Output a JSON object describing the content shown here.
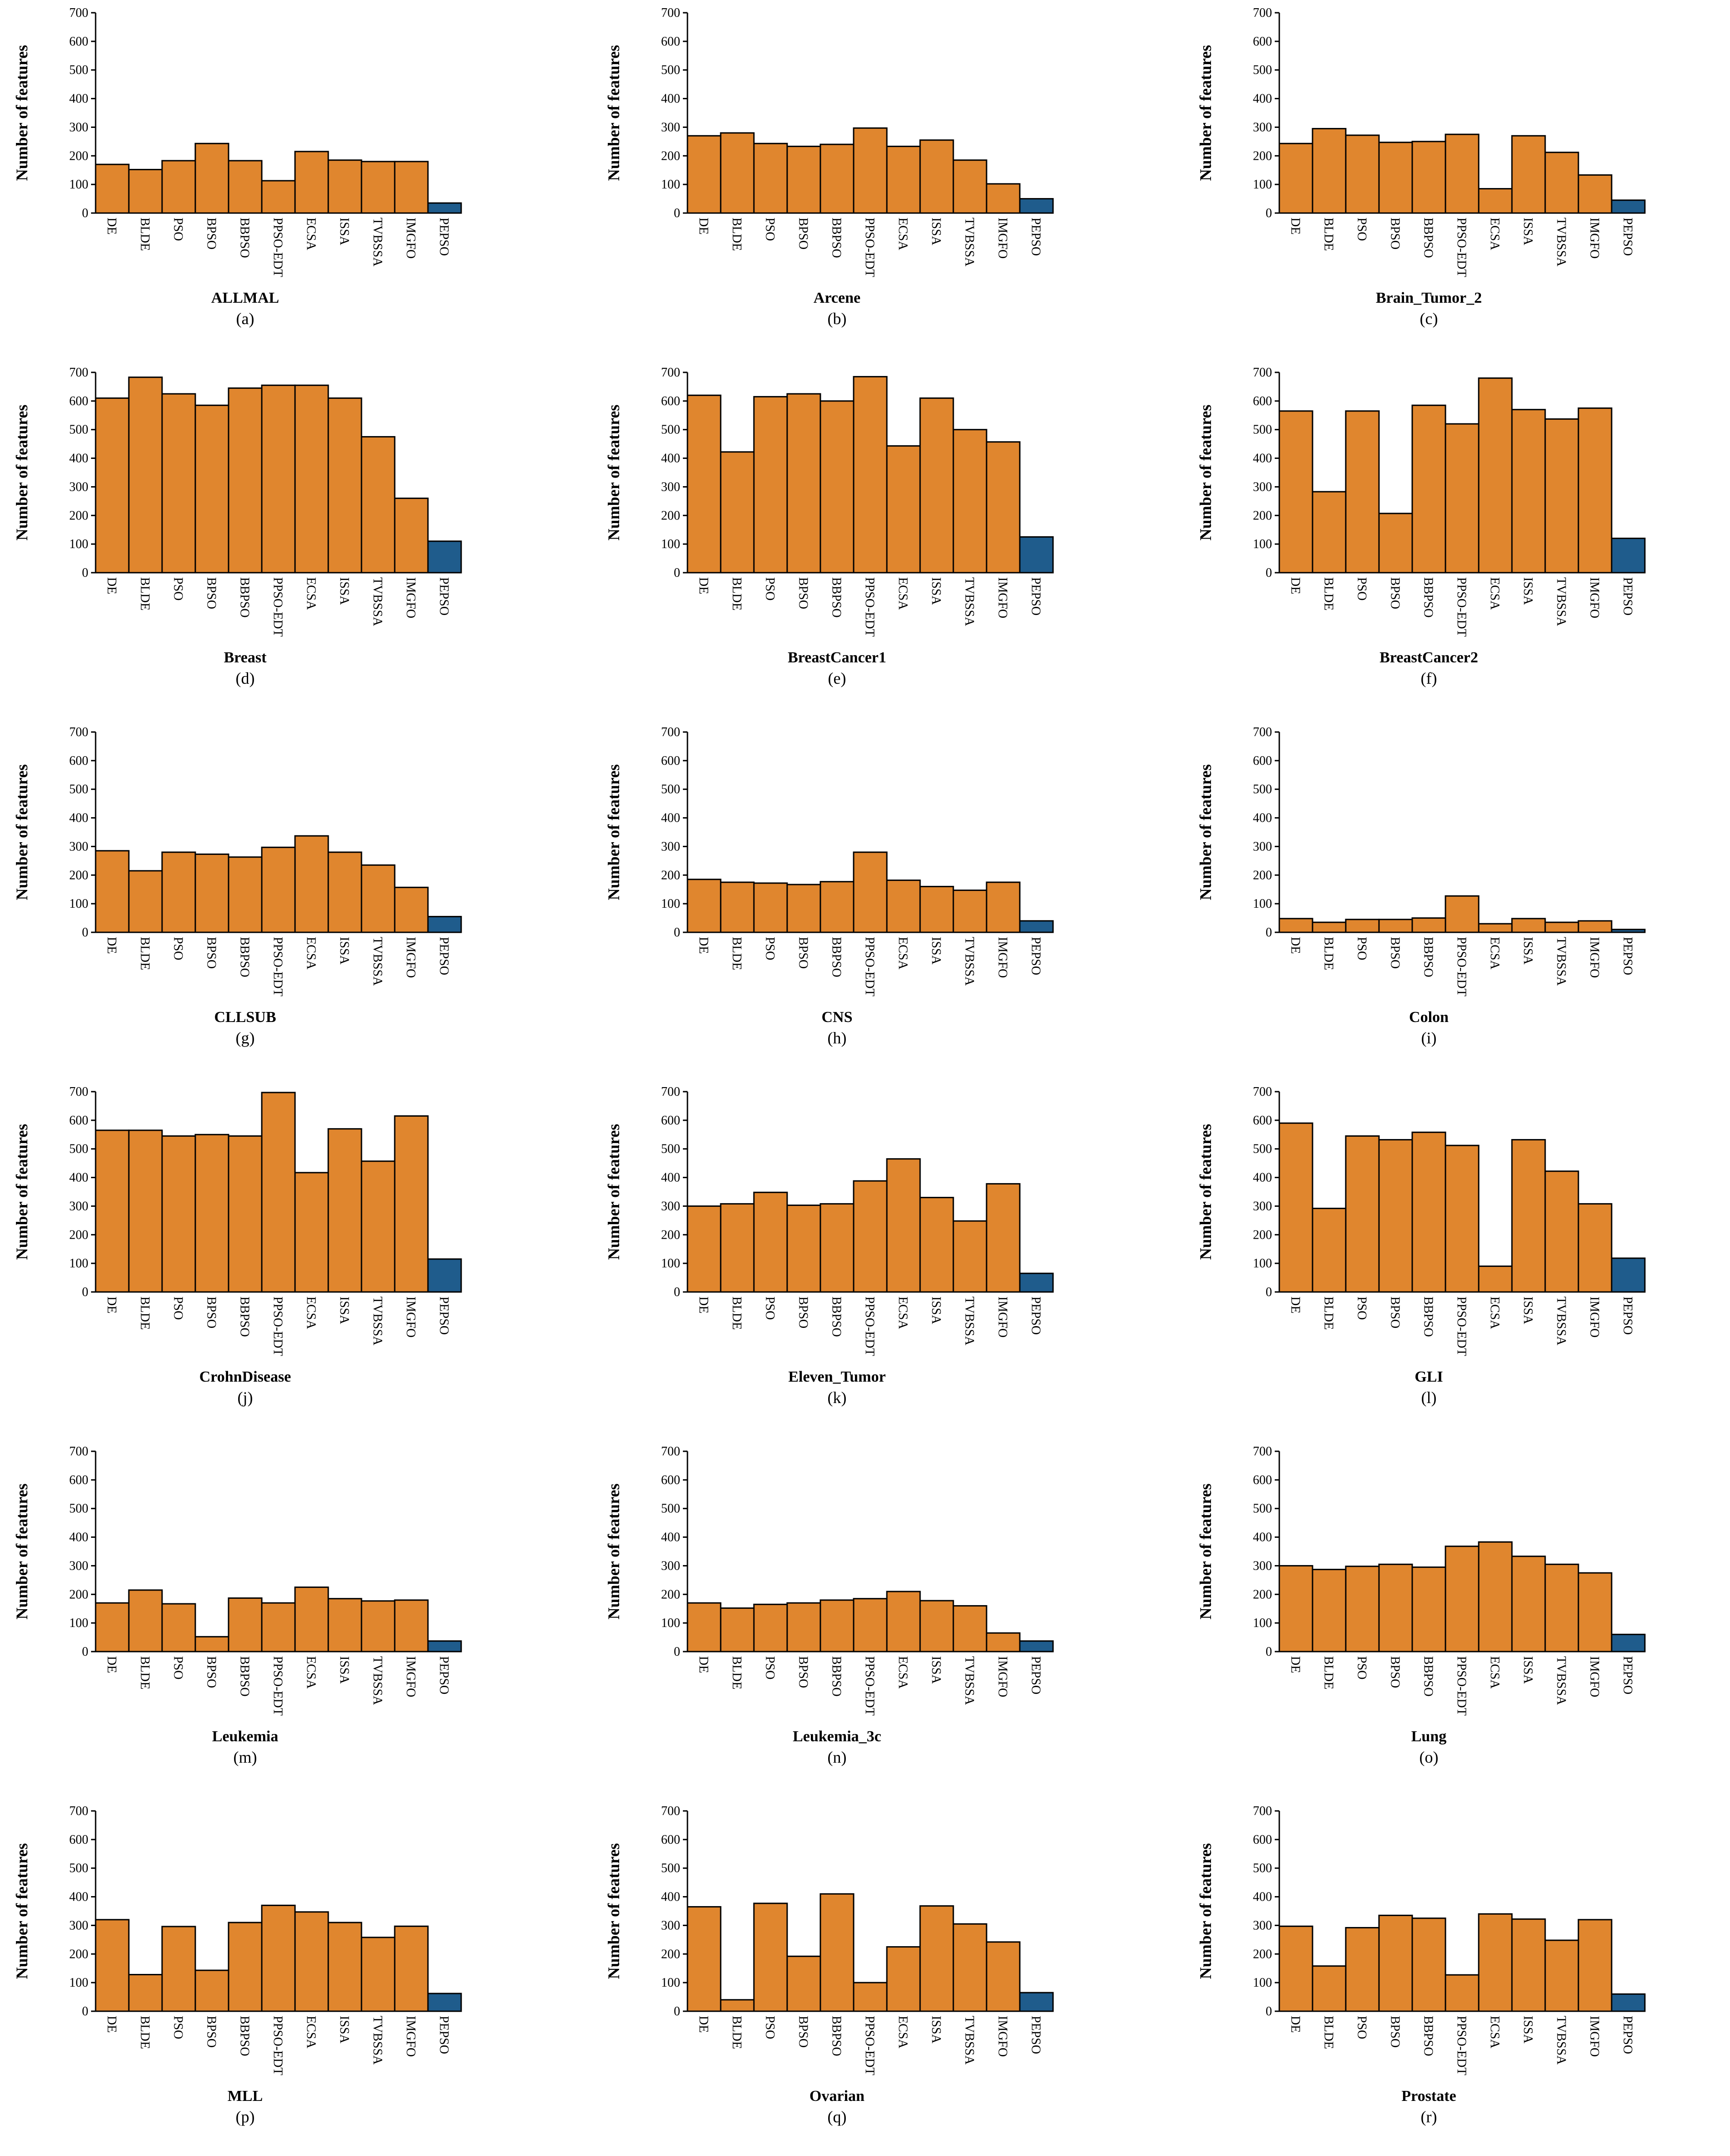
{
  "colors": {
    "others": "#E0862E",
    "proposed": "#1F5C8C",
    "edge": "#000000"
  },
  "chart_data": [
    {
      "type": "bar",
      "title": "ALLMAL",
      "subtitle": "(a)",
      "ylabel": "Number of features",
      "ylim": [
        0,
        700
      ],
      "yticks": [
        0,
        100,
        200,
        300,
        400,
        500,
        600,
        700
      ],
      "categories": [
        "DE",
        "BLDE",
        "PSO",
        "BPSO",
        "BBPSO",
        "PPSO-EDT",
        "ECSA",
        "ISSA",
        "TVBSSA",
        "IMGFO",
        "PEPSO"
      ],
      "values": [
        170,
        152,
        183,
        243,
        183,
        113,
        215,
        185,
        180,
        180,
        35
      ],
      "highlight_index": 10
    },
    {
      "type": "bar",
      "title": "Arcene",
      "subtitle": "(b)",
      "ylabel": "Number of features",
      "ylim": [
        0,
        700
      ],
      "yticks": [
        0,
        100,
        200,
        300,
        400,
        500,
        600,
        700
      ],
      "categories": [
        "DE",
        "BLDE",
        "PSO",
        "BPSO",
        "BBPSO",
        "PPSO-EDT",
        "ECSA",
        "ISSA",
        "TVBSSA",
        "IMGFO",
        "PEPSO"
      ],
      "values": [
        270,
        280,
        243,
        233,
        240,
        297,
        233,
        255,
        185,
        102,
        50
      ],
      "highlight_index": 10
    },
    {
      "type": "bar",
      "title": "Brain_Tumor_2",
      "subtitle": "(c)",
      "ylabel": "Number of features",
      "ylim": [
        0,
        700
      ],
      "yticks": [
        0,
        100,
        200,
        300,
        400,
        500,
        600,
        700
      ],
      "categories": [
        "DE",
        "BLDE",
        "PSO",
        "BPSO",
        "BBPSO",
        "PPSO-EDT",
        "ECSA",
        "ISSA",
        "TVBSSA",
        "IMGFO",
        "PEPSO"
      ],
      "values": [
        243,
        295,
        272,
        247,
        250,
        275,
        85,
        270,
        212,
        133,
        45
      ],
      "highlight_index": 10
    },
    {
      "type": "bar",
      "title": "Breast",
      "subtitle": "(d)",
      "ylabel": "Number of features",
      "ylim": [
        0,
        700
      ],
      "yticks": [
        0,
        100,
        200,
        300,
        400,
        500,
        600,
        700
      ],
      "categories": [
        "DE",
        "BLDE",
        "PSO",
        "BPSO",
        "BBPSO",
        "PPSO-EDT",
        "ECSA",
        "ISSA",
        "TVBSSA",
        "IMGFO",
        "PEPSO"
      ],
      "values": [
        610,
        683,
        625,
        585,
        645,
        655,
        655,
        610,
        475,
        260,
        110
      ],
      "highlight_index": 10
    },
    {
      "type": "bar",
      "title": "BreastCancer1",
      "subtitle": "(e)",
      "ylabel": "Number of features",
      "ylim": [
        0,
        700
      ],
      "yticks": [
        0,
        100,
        200,
        300,
        400,
        500,
        600,
        700
      ],
      "categories": [
        "DE",
        "BLDE",
        "PSO",
        "BPSO",
        "BBPSO",
        "PPSO-EDT",
        "ECSA",
        "ISSA",
        "TVBSSA",
        "IMGFO",
        "PEPSO"
      ],
      "values": [
        620,
        422,
        615,
        625,
        600,
        685,
        443,
        610,
        500,
        457,
        125
      ],
      "highlight_index": 10
    },
    {
      "type": "bar",
      "title": "BreastCancer2",
      "subtitle": "(f)",
      "ylabel": "Number of features",
      "ylim": [
        0,
        700
      ],
      "yticks": [
        0,
        100,
        200,
        300,
        400,
        500,
        600,
        700
      ],
      "categories": [
        "DE",
        "BLDE",
        "PSO",
        "BPSO",
        "BBPSO",
        "PPSO-EDT",
        "ECSA",
        "ISSA",
        "TVBSSA",
        "IMGFO",
        "PEPSO"
      ],
      "values": [
        565,
        283,
        565,
        207,
        585,
        520,
        680,
        570,
        537,
        575,
        120
      ],
      "highlight_index": 10
    },
    {
      "type": "bar",
      "title": "CLLSUB",
      "subtitle": "(g)",
      "ylabel": "Number of features",
      "ylim": [
        0,
        700
      ],
      "yticks": [
        0,
        100,
        200,
        300,
        400,
        500,
        600,
        700
      ],
      "categories": [
        "DE",
        "BLDE",
        "PSO",
        "BPSO",
        "BBPSO",
        "PPSO-EDT",
        "ECSA",
        "ISSA",
        "TVBSSA",
        "IMGFO",
        "PEPSO"
      ],
      "values": [
        285,
        215,
        280,
        273,
        263,
        297,
        337,
        280,
        235,
        157,
        55
      ],
      "highlight_index": 10
    },
    {
      "type": "bar",
      "title": "CNS",
      "subtitle": "(h)",
      "ylabel": "Number of features",
      "ylim": [
        0,
        700
      ],
      "yticks": [
        0,
        100,
        200,
        300,
        400,
        500,
        600,
        700
      ],
      "categories": [
        "DE",
        "BLDE",
        "PSO",
        "BPSO",
        "BBPSO",
        "PPSO-EDT",
        "ECSA",
        "ISSA",
        "TVBSSA",
        "IMGFO",
        "PEPSO"
      ],
      "values": [
        185,
        175,
        172,
        167,
        177,
        280,
        182,
        160,
        147,
        175,
        40
      ],
      "highlight_index": 10
    },
    {
      "type": "bar",
      "title": "Colon",
      "subtitle": "(i)",
      "ylabel": "Number of features",
      "ylim": [
        0,
        700
      ],
      "yticks": [
        0,
        100,
        200,
        300,
        400,
        500,
        600,
        700
      ],
      "categories": [
        "DE",
        "BLDE",
        "PSO",
        "BPSO",
        "BBPSO",
        "PPSO-EDT",
        "ECSA",
        "ISSA",
        "TVBSSA",
        "IMGFO",
        "PEPSO"
      ],
      "values": [
        48,
        35,
        45,
        45,
        50,
        127,
        30,
        48,
        35,
        40,
        10
      ],
      "highlight_index": 10
    },
    {
      "type": "bar",
      "title": "CrohnDisease",
      "subtitle": "(j)",
      "ylabel": "Number of features",
      "ylim": [
        0,
        700
      ],
      "yticks": [
        0,
        100,
        200,
        300,
        400,
        500,
        600,
        700
      ],
      "categories": [
        "DE",
        "BLDE",
        "PSO",
        "BPSO",
        "BBPSO",
        "PPSO-EDT",
        "ECSA",
        "ISSA",
        "TVBSSA",
        "IMGFO",
        "PEPSO"
      ],
      "values": [
        565,
        565,
        545,
        550,
        545,
        697,
        417,
        570,
        457,
        615,
        115
      ],
      "highlight_index": 10
    },
    {
      "type": "bar",
      "title": "Eleven_Tumor",
      "subtitle": "(k)",
      "ylabel": "Number of features",
      "ylim": [
        0,
        700
      ],
      "yticks": [
        0,
        100,
        200,
        300,
        400,
        500,
        600,
        700
      ],
      "categories": [
        "DE",
        "BLDE",
        "PSO",
        "BPSO",
        "BBPSO",
        "PPSO-EDT",
        "ECSA",
        "ISSA",
        "TVBSSA",
        "IMGFO",
        "PEPSO"
      ],
      "values": [
        300,
        308,
        348,
        303,
        308,
        388,
        465,
        330,
        248,
        378,
        65
      ],
      "highlight_index": 10
    },
    {
      "type": "bar",
      "title": "GLI",
      "subtitle": "(l)",
      "ylabel": "Number of features",
      "ylim": [
        0,
        700
      ],
      "yticks": [
        0,
        100,
        200,
        300,
        400,
        500,
        600,
        700
      ],
      "categories": [
        "DE",
        "BLDE",
        "PSO",
        "BPSO",
        "BBPSO",
        "PPSO-EDT",
        "ECSA",
        "ISSA",
        "TVBSSA",
        "IMGFO",
        "PEPSO"
      ],
      "values": [
        590,
        292,
        545,
        532,
        558,
        512,
        90,
        532,
        422,
        308,
        118
      ],
      "highlight_index": 10
    },
    {
      "type": "bar",
      "title": "Leukemia",
      "subtitle": "(m)",
      "ylabel": "Number of features",
      "ylim": [
        0,
        700
      ],
      "yticks": [
        0,
        100,
        200,
        300,
        400,
        500,
        600,
        700
      ],
      "categories": [
        "DE",
        "BLDE",
        "PSO",
        "BPSO",
        "BBPSO",
        "PPSO-EDT",
        "ECSA",
        "ISSA",
        "TVBSSA",
        "IMGFO",
        "PEPSO"
      ],
      "values": [
        170,
        215,
        167,
        52,
        187,
        170,
        225,
        185,
        177,
        180,
        37
      ],
      "highlight_index": 10
    },
    {
      "type": "bar",
      "title": "Leukemia_3c",
      "subtitle": "(n)",
      "ylabel": "Number of features",
      "ylim": [
        0,
        700
      ],
      "yticks": [
        0,
        100,
        200,
        300,
        400,
        500,
        600,
        700
      ],
      "categories": [
        "DE",
        "BLDE",
        "PSO",
        "BPSO",
        "BBPSO",
        "PPSO-EDT",
        "ECSA",
        "ISSA",
        "TVBSSA",
        "IMGFO",
        "PEPSO"
      ],
      "values": [
        170,
        152,
        165,
        170,
        180,
        185,
        210,
        178,
        160,
        65,
        37
      ],
      "highlight_index": 10
    },
    {
      "type": "bar",
      "title": "Lung",
      "subtitle": "(o)",
      "ylabel": "Number of features",
      "ylim": [
        0,
        700
      ],
      "yticks": [
        0,
        100,
        200,
        300,
        400,
        500,
        600,
        700
      ],
      "categories": [
        "DE",
        "BLDE",
        "PSO",
        "BPSO",
        "BBPSO",
        "PPSO-EDT",
        "ECSA",
        "ISSA",
        "TVBSSA",
        "IMGFO",
        "PEPSO"
      ],
      "values": [
        300,
        287,
        298,
        305,
        295,
        368,
        383,
        333,
        305,
        275,
        60
      ],
      "highlight_index": 10
    },
    {
      "type": "bar",
      "title": "MLL",
      "subtitle": "(p)",
      "ylabel": "Number of features",
      "ylim": [
        0,
        700
      ],
      "yticks": [
        0,
        100,
        200,
        300,
        400,
        500,
        600,
        700
      ],
      "categories": [
        "DE",
        "BLDE",
        "PSO",
        "BPSO",
        "BBPSO",
        "PPSO-EDT",
        "ECSA",
        "ISSA",
        "TVBSSA",
        "IMGFO",
        "PEPSO"
      ],
      "values": [
        320,
        128,
        296,
        143,
        310,
        370,
        347,
        310,
        258,
        297,
        62
      ],
      "highlight_index": 10
    },
    {
      "type": "bar",
      "title": "Ovarian",
      "subtitle": "(q)",
      "ylabel": "Number of features",
      "ylim": [
        0,
        700
      ],
      "yticks": [
        0,
        100,
        200,
        300,
        400,
        500,
        600,
        700
      ],
      "categories": [
        "DE",
        "BLDE",
        "PSO",
        "BPSO",
        "BBPSO",
        "PPSO-EDT",
        "ECSA",
        "ISSA",
        "TVBSSA",
        "IMGFO",
        "PEPSO"
      ],
      "values": [
        365,
        40,
        377,
        192,
        410,
        100,
        225,
        368,
        305,
        242,
        65
      ],
      "highlight_index": 10
    },
    {
      "type": "bar",
      "title": "Prostate",
      "subtitle": "(r)",
      "ylabel": "Number of features",
      "ylim": [
        0,
        700
      ],
      "yticks": [
        0,
        100,
        200,
        300,
        400,
        500,
        600,
        700
      ],
      "categories": [
        "DE",
        "BLDE",
        "PSO",
        "BPSO",
        "BBPSO",
        "PPSO-EDT",
        "ECSA",
        "ISSA",
        "TVBSSA",
        "IMGFO",
        "PEPSO"
      ],
      "values": [
        297,
        158,
        292,
        335,
        325,
        127,
        340,
        322,
        248,
        320,
        60
      ],
      "highlight_index": 10
    }
  ]
}
